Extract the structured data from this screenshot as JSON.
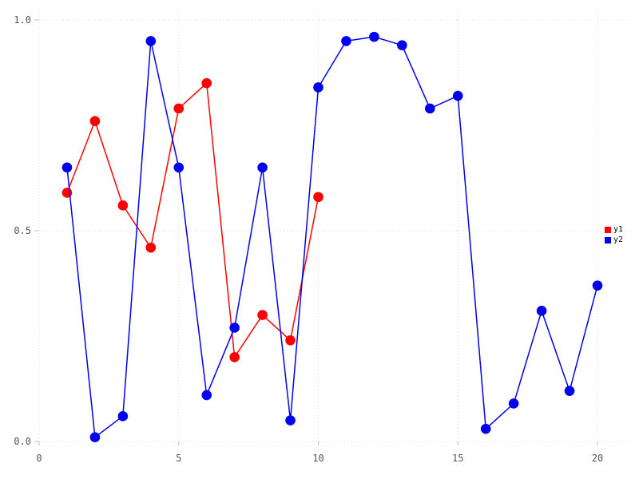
{
  "chart_data": {
    "type": "line",
    "title": "",
    "xlabel": "",
    "ylabel": "",
    "xlim": [
      0,
      20
    ],
    "ylim": [
      0.0,
      1.0
    ],
    "xticks": [
      0,
      5,
      10,
      15,
      20
    ],
    "xtick_labels": [
      "0",
      "5",
      "10",
      "15",
      "20"
    ],
    "yticks": [
      0.0,
      0.5,
      1.0
    ],
    "ytick_labels": [
      "0.0",
      "0.5",
      "1.0"
    ],
    "grid": true,
    "grid_style": "dotted",
    "legend_position": "right-middle",
    "marker": "circle",
    "series": [
      {
        "name": "y1",
        "color": "#ff0000",
        "x": [
          1,
          2,
          3,
          4,
          5,
          6,
          7,
          8,
          9,
          10
        ],
        "values": [
          0.59,
          0.76,
          0.56,
          0.46,
          0.79,
          0.85,
          0.2,
          0.3,
          0.24,
          0.58
        ]
      },
      {
        "name": "y2",
        "color": "#0000f0",
        "x": [
          1,
          2,
          3,
          4,
          5,
          6,
          7,
          8,
          9,
          10,
          11,
          12,
          13,
          14,
          15,
          16,
          17,
          18,
          19,
          20
        ],
        "values": [
          0.65,
          0.01,
          0.06,
          0.95,
          0.65,
          0.11,
          0.27,
          0.65,
          0.05,
          0.84,
          0.95,
          0.96,
          0.94,
          0.79,
          0.82,
          0.03,
          0.09,
          0.31,
          0.12,
          0.37
        ]
      }
    ],
    "colors": {
      "background": "#ffffff",
      "grid": "#d9d9e3",
      "tick": "#c0c0c8",
      "tick_label": "#555555",
      "legend_text": "#000000"
    }
  }
}
